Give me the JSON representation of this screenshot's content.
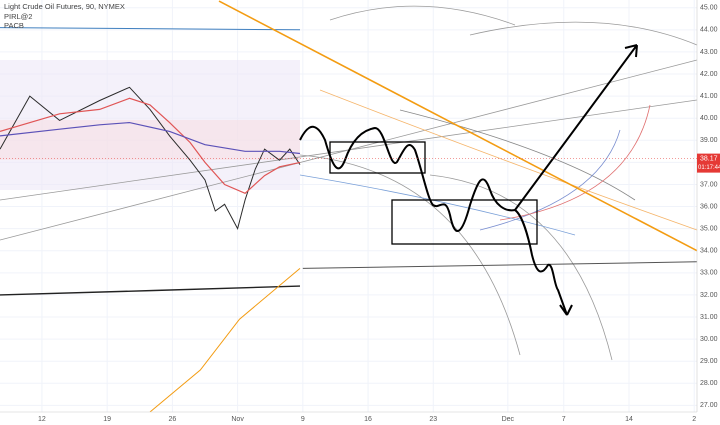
{
  "chart_data": {
    "type": "line",
    "title": "Light Crude Oil Futures, 90, NYMEX",
    "indicators": [
      "PIRL@2",
      "PACB"
    ],
    "xlim": [
      -4.5,
      70.3
    ],
    "ylim": [
      26.7,
      45.35
    ],
    "grid": true,
    "xticks": [
      {
        "value": 0,
        "label": "12"
      },
      {
        "value": 7,
        "label": "19"
      },
      {
        "value": 14,
        "label": "26"
      },
      {
        "value": 21,
        "label": "Nov"
      },
      {
        "value": 28,
        "label": "9"
      },
      {
        "value": 35,
        "label": "16"
      },
      {
        "value": 42,
        "label": "23"
      },
      {
        "value": 50,
        "label": "Dec"
      },
      {
        "value": 56,
        "label": "7"
      },
      {
        "value": 63,
        "label": "14"
      },
      {
        "value": 70,
        "label": "2"
      }
    ],
    "yticks": [
      {
        "value": 45,
        "label": "45.00"
      },
      {
        "value": 44,
        "label": "44.00"
      },
      {
        "value": 43,
        "label": "43.00"
      },
      {
        "value": 42,
        "label": "42.00"
      },
      {
        "value": 41,
        "label": "41.00"
      },
      {
        "value": 40,
        "label": "40.00"
      },
      {
        "value": 39,
        "label": "39.00"
      },
      {
        "value": 38,
        "label": "38.00"
      },
      {
        "value": 37,
        "label": "37.00"
      },
      {
        "value": 36,
        "label": "36.00"
      },
      {
        "value": 35,
        "label": "35.00"
      },
      {
        "value": 34,
        "label": "34.00"
      },
      {
        "value": 33,
        "label": "33.00"
      },
      {
        "value": 32,
        "label": "32.00"
      },
      {
        "value": 31,
        "label": "31.00"
      },
      {
        "value": 30,
        "label": "30.00"
      },
      {
        "value": 29,
        "label": "29.00"
      },
      {
        "value": 28,
        "label": "28.00"
      },
      {
        "value": 27,
        "label": "27.00"
      }
    ],
    "last_price": {
      "value": 38.17,
      "label": "38.17",
      "color": "#e53935"
    },
    "countdown": "01:17:44",
    "series": [
      {
        "color": "#2b2b2b",
        "width": 1,
        "x": [
          -4.5,
          -1.3,
          1.9,
          6.2,
          9.4,
          11.6,
          13.7,
          15.9,
          17.5,
          18.6,
          19.6,
          21,
          21.8,
          22.9,
          23.9,
          25.5,
          26.6,
          27.7
        ],
        "values": [
          38.6,
          41.0,
          39.9,
          40.8,
          41.4,
          40.4,
          39.2,
          38.1,
          37.2,
          35.8,
          36.1,
          35.0,
          36.3,
          37.7,
          38.6,
          38.1,
          38.6,
          37.9
        ]
      },
      {
        "color": "#e05555",
        "width": 1.2,
        "x": [
          -4.5,
          1.9,
          6.2,
          9.4,
          11.6,
          13.7,
          15.9,
          17.5,
          19.6,
          21.8,
          23.9,
          25.5,
          27.7
        ],
        "values": [
          39.4,
          40.2,
          40.4,
          40.9,
          40.6,
          39.8,
          38.9,
          38.0,
          37.0,
          36.6,
          37.4,
          37.8,
          38.0
        ]
      },
      {
        "color": "#5c52b8",
        "width": 1.2,
        "x": [
          -4.5,
          1.9,
          6.2,
          9.4,
          13.7,
          17.5,
          21.8,
          25.5,
          27.7
        ],
        "values": [
          39.2,
          39.5,
          39.7,
          39.8,
          39.4,
          38.8,
          38.5,
          38.5,
          38.4
        ]
      },
      {
        "color": "#3f7fbf",
        "width": 1,
        "x": [
          -4.5,
          27.7
        ],
        "values": [
          44.1,
          44.0
        ]
      },
      {
        "color": "#222222",
        "width": 1.4,
        "x": [
          -4.5,
          12,
          27.7
        ],
        "values": [
          32.0,
          32.2,
          32.4
        ]
      },
      {
        "color": "#555555",
        "width": 1,
        "x": [
          28,
          70.3
        ],
        "values": [
          33.2,
          33.5
        ]
      },
      {
        "color": "#f39c12",
        "width": 1.6,
        "x": [
          19,
          70.3
        ],
        "values": [
          45.3,
          34.0
        ]
      },
      {
        "color": "#f39c12",
        "width": 1,
        "x": [
          11.6,
          17,
          21.2,
          27.7
        ],
        "values": [
          26.7,
          28.6,
          30.9,
          33.2
        ]
      }
    ]
  }
}
